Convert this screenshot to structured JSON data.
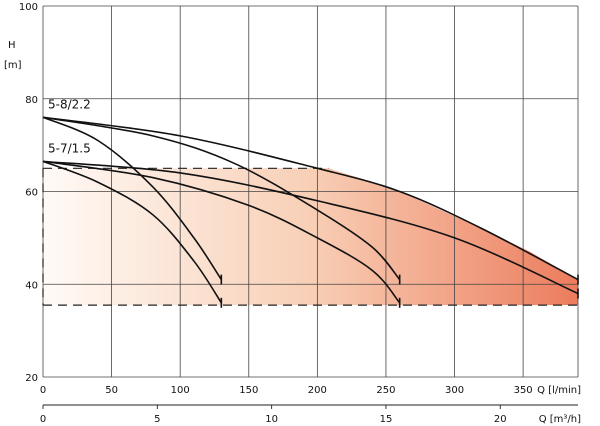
{
  "chart_data": {
    "type": "line",
    "y_axis": {
      "label_top": "H",
      "label_unit": "[m]",
      "range": [
        20,
        100
      ],
      "ticks": [
        20,
        40,
        60,
        80,
        100
      ]
    },
    "x_axis": {
      "label": "Q [l/min]",
      "range": [
        0,
        390
      ],
      "ticks": [
        0,
        50,
        100,
        150,
        200,
        250,
        300,
        350
      ]
    },
    "x_axis_secondary": {
      "label": "Q [m³/h]",
      "range": [
        0,
        23.4
      ],
      "ticks": [
        0,
        5,
        10,
        15,
        20
      ]
    },
    "grid": true,
    "series": [
      {
        "name": "5-8/2.2",
        "points": [
          [
            0,
            76
          ],
          [
            100,
            72
          ],
          [
            200,
            65
          ],
          [
            260,
            60
          ],
          [
            320,
            52
          ],
          [
            390,
            41
          ]
        ]
      },
      {
        "name": "",
        "points": [
          [
            0,
            76
          ],
          [
            80,
            72
          ],
          [
            140,
            66
          ],
          [
            200,
            56
          ],
          [
            240,
            48
          ],
          [
            260,
            41
          ]
        ]
      },
      {
        "name": "",
        "points": [
          [
            0,
            76
          ],
          [
            40,
            71
          ],
          [
            80,
            61
          ],
          [
            110,
            50
          ],
          [
            130,
            41
          ]
        ]
      },
      {
        "name": "5-7/1.5",
        "points": [
          [
            0,
            66.5
          ],
          [
            100,
            64
          ],
          [
            200,
            58
          ],
          [
            300,
            50
          ],
          [
            390,
            38
          ]
        ]
      },
      {
        "name": "",
        "points": [
          [
            0,
            66.5
          ],
          [
            80,
            63
          ],
          [
            150,
            57
          ],
          [
            200,
            50
          ],
          [
            240,
            43
          ],
          [
            260,
            36
          ]
        ]
      },
      {
        "name": "",
        "points": [
          [
            0,
            66.5
          ],
          [
            40,
            62
          ],
          [
            80,
            55
          ],
          [
            110,
            45
          ],
          [
            130,
            36
          ]
        ]
      }
    ],
    "operating_range": {
      "q_min": 0,
      "q_max": 390,
      "h_upper": 65,
      "h_lower": 35.5,
      "colors": [
        "#fffaf6",
        "#f8cfb6",
        "#ec7c5d"
      ]
    }
  }
}
